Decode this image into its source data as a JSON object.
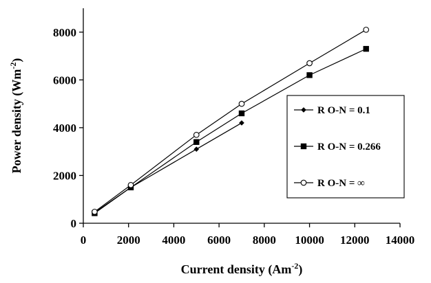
{
  "chart_data": {
    "type": "line",
    "title": "",
    "xlabel": "Current density (Am",
    "xlabel_sup": "-2",
    "xlabel_end": ")",
    "ylabel": "Power density (Wm",
    "ylabel_sup": "-2",
    "ylabel_end": ")",
    "xlim": [
      0,
      14000
    ],
    "ylim": [
      0,
      9000
    ],
    "xticks": [
      0,
      2000,
      4000,
      6000,
      8000,
      10000,
      12000,
      14000
    ],
    "yticks": [
      0,
      2000,
      4000,
      6000,
      8000
    ],
    "legend_position": "right",
    "grid": false,
    "series": [
      {
        "name": "R O-N = 0.1",
        "marker": "diamond",
        "x": [
          500,
          2100,
          5000,
          7000
        ],
        "y": [
          450,
          1500,
          3100,
          4200
        ]
      },
      {
        "name": "R O-N = 0.266",
        "marker": "square",
        "x": [
          500,
          2100,
          5000,
          7000,
          10000,
          12500
        ],
        "y": [
          420,
          1500,
          3400,
          4600,
          6200,
          7300
        ]
      },
      {
        "name": "R O-N = ∞",
        "marker": "circle-open",
        "x": [
          500,
          2100,
          5000,
          7000,
          10000,
          12500
        ],
        "y": [
          480,
          1600,
          3700,
          5000,
          6700,
          8100
        ]
      }
    ]
  }
}
